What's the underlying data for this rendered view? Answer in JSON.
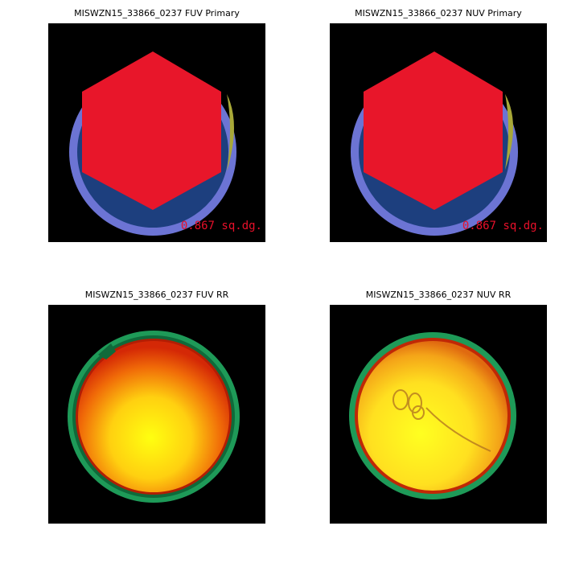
{
  "panels": [
    {
      "title": "MISWZN15_33866_0237 FUV Primary",
      "area": "0.867 sq.dg."
    },
    {
      "title": "MISWZN15_33866_0237 NUV Primary",
      "area": "0.867 sq.dg."
    },
    {
      "title": "MISWZN15_33866_0237 FUV RR"
    },
    {
      "title": "MISWZN15_33866_0237 NUV RR"
    }
  ],
  "colors": {
    "background": "#000000",
    "hexagon": "#e8162a",
    "dark_ring": "#1d3f7e",
    "light_ring": "#6c74d4",
    "edge_overlap": "#a8a838",
    "response_center": "#ffff10",
    "response_edge": "#d42806",
    "response_rim": "#1e9a58"
  }
}
